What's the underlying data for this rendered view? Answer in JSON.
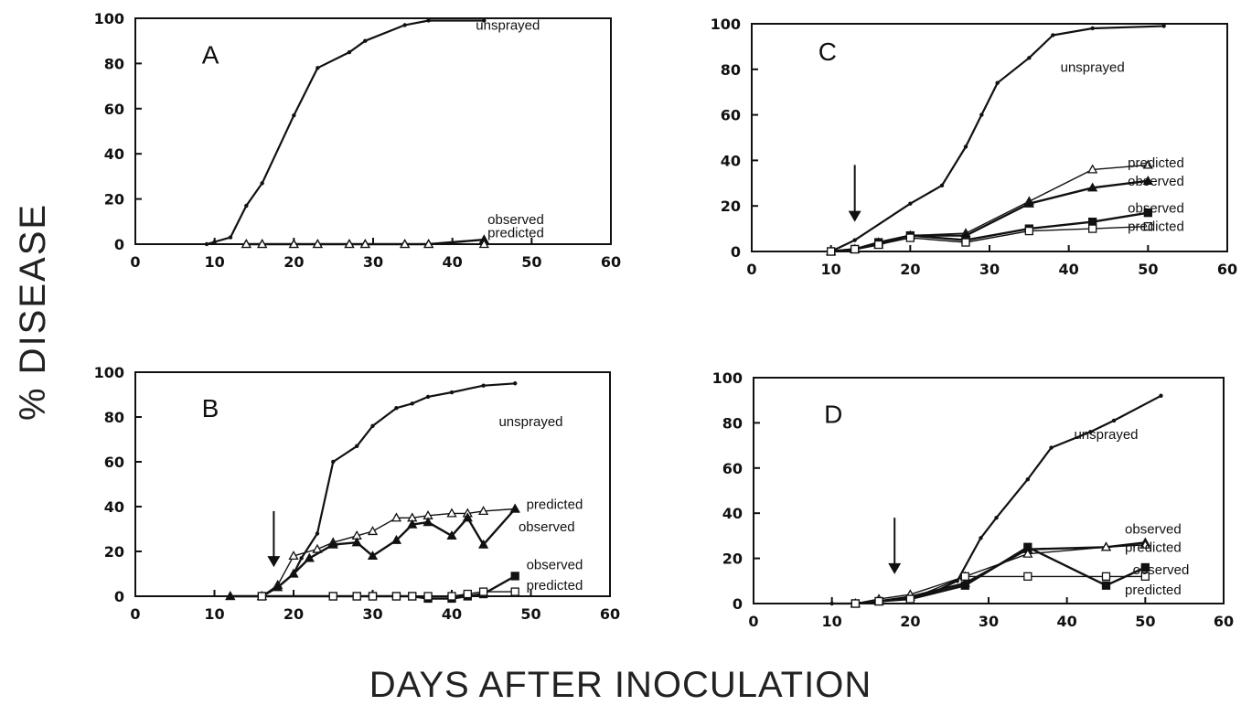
{
  "figure": {
    "ylabel": "% DISEASE",
    "xlabel": "DAYS AFTER INOCULATION"
  },
  "chart_data": [
    {
      "panel": "A",
      "type": "line",
      "xlim": [
        0,
        60
      ],
      "ylim": [
        0,
        100
      ],
      "xticks": [
        0,
        10,
        20,
        30,
        40,
        50,
        60
      ],
      "yticks": [
        0,
        20,
        40,
        60,
        80,
        100
      ],
      "spray_arrow_x": null,
      "series": [
        {
          "name": "unsprayed",
          "marker": "dot",
          "x": [
            9,
            10,
            12,
            14,
            16,
            20,
            23,
            27,
            29,
            34,
            37,
            44
          ],
          "y": [
            0,
            1,
            3,
            17,
            27,
            57,
            78,
            85,
            90,
            97,
            99,
            99
          ]
        },
        {
          "name": "observed",
          "marker": "triangle-filled",
          "x": [
            14,
            16,
            20,
            23,
            27,
            29,
            34,
            37,
            44
          ],
          "y": [
            0,
            0,
            0,
            0,
            0,
            0,
            0,
            0,
            2
          ]
        },
        {
          "name": "predicted",
          "marker": "triangle-open",
          "x": [
            14,
            16,
            20,
            23,
            27,
            29,
            34,
            37,
            44
          ],
          "y": [
            0,
            0,
            0,
            0,
            0,
            0,
            0,
            0,
            0
          ]
        }
      ],
      "annotations": [
        {
          "text": "unsprayed",
          "x": 47,
          "y": 97
        },
        {
          "text": "observed",
          "x": 48,
          "y": 11
        },
        {
          "text": "predicted",
          "x": 48,
          "y": 5
        }
      ]
    },
    {
      "panel": "B",
      "type": "line",
      "xlim": [
        0,
        60
      ],
      "ylim": [
        0,
        100
      ],
      "xticks": [
        0,
        10,
        20,
        30,
        40,
        50,
        60
      ],
      "yticks": [
        0,
        20,
        40,
        60,
        80,
        100
      ],
      "spray_arrow_x": 17.5,
      "series": [
        {
          "name": "unsprayed",
          "marker": "dot",
          "x": [
            12,
            16,
            18,
            20,
            21,
            23,
            25,
            28,
            30,
            33,
            35,
            37,
            40,
            44,
            48
          ],
          "y": [
            0,
            0,
            4,
            10,
            17,
            28,
            60,
            67,
            76,
            84,
            86,
            89,
            91,
            94,
            95
          ]
        },
        {
          "name": "predicted",
          "marker": "triangle-open",
          "x": [
            12,
            16,
            18,
            20,
            23,
            25,
            28,
            30,
            33,
            35,
            37,
            40,
            42,
            44,
            48
          ],
          "y": [
            0,
            0,
            5,
            18,
            21,
            24,
            27,
            29,
            35,
            35,
            36,
            37,
            37,
            38,
            39
          ]
        },
        {
          "name": "observed",
          "marker": "triangle-filled",
          "x": [
            12,
            16,
            18,
            20,
            22,
            25,
            28,
            30,
            33,
            35,
            37,
            40,
            42,
            44,
            48
          ],
          "y": [
            0,
            0,
            4,
            10,
            17,
            23,
            24,
            18,
            25,
            32,
            33,
            27,
            35,
            23,
            39
          ]
        },
        {
          "name": "observed",
          "marker": "square-filled",
          "x": [
            16,
            25,
            28,
            30,
            33,
            35,
            37,
            40,
            42,
            44,
            48
          ],
          "y": [
            0,
            0,
            0,
            0,
            0,
            0,
            -1,
            -1,
            0,
            1,
            9
          ]
        },
        {
          "name": "predicted",
          "marker": "square-open",
          "x": [
            16,
            25,
            28,
            30,
            33,
            35,
            37,
            40,
            42,
            44,
            48
          ],
          "y": [
            0,
            0,
            0,
            0,
            0,
            0,
            0,
            0,
            1,
            2,
            2
          ]
        }
      ],
      "annotations": [
        {
          "text": "unsprayed",
          "x": 50,
          "y": 78
        },
        {
          "text": "predicted",
          "x": 53,
          "y": 41
        },
        {
          "text": "observed",
          "x": 52,
          "y": 31
        },
        {
          "text": "observed",
          "x": 53,
          "y": 14
        },
        {
          "text": "predicted",
          "x": 53,
          "y": 5
        }
      ]
    },
    {
      "panel": "C",
      "type": "line",
      "xlim": [
        0,
        60
      ],
      "ylim": [
        0,
        100
      ],
      "xticks": [
        0,
        10,
        20,
        30,
        40,
        50,
        60
      ],
      "yticks": [
        0,
        20,
        40,
        60,
        80,
        100
      ],
      "spray_arrow_x": 13,
      "series": [
        {
          "name": "unsprayed",
          "marker": "dot",
          "x": [
            10,
            13,
            20,
            24,
            27,
            29,
            31,
            35,
            38,
            43,
            52
          ],
          "y": [
            0,
            5,
            21,
            29,
            46,
            60,
            74,
            85,
            95,
            98,
            99
          ]
        },
        {
          "name": "predicted",
          "marker": "triangle-open",
          "x": [
            10,
            13,
            16,
            20,
            27,
            35,
            43,
            50
          ],
          "y": [
            0,
            1,
            4,
            7,
            8,
            22,
            36,
            38
          ]
        },
        {
          "name": "observed",
          "marker": "triangle-filled",
          "x": [
            10,
            13,
            16,
            20,
            27,
            35,
            43,
            50
          ],
          "y": [
            0,
            1,
            3,
            7,
            7,
            21,
            28,
            31
          ]
        },
        {
          "name": "observed",
          "marker": "square-filled",
          "x": [
            10,
            13,
            16,
            20,
            27,
            35,
            43,
            50
          ],
          "y": [
            0,
            1,
            4,
            7,
            5,
            10,
            13,
            17
          ]
        },
        {
          "name": "predicted",
          "marker": "square-open",
          "x": [
            10,
            13,
            16,
            20,
            27,
            35,
            43,
            50
          ],
          "y": [
            0,
            1,
            3,
            6,
            4,
            9,
            10,
            11
          ]
        }
      ],
      "annotations": [
        {
          "text": "unsprayed",
          "x": 43,
          "y": 81
        },
        {
          "text": "predicted",
          "x": 51,
          "y": 39
        },
        {
          "text": "observed",
          "x": 51,
          "y": 31
        },
        {
          "text": "observed",
          "x": 51,
          "y": 19
        },
        {
          "text": "predicted",
          "x": 51,
          "y": 11
        }
      ]
    },
    {
      "panel": "D",
      "type": "line",
      "xlim": [
        0,
        60
      ],
      "ylim": [
        0,
        100
      ],
      "xticks": [
        0,
        10,
        20,
        30,
        40,
        50,
        60
      ],
      "yticks": [
        0,
        20,
        40,
        60,
        80,
        100
      ],
      "spray_arrow_x": 18,
      "series": [
        {
          "name": "unsprayed",
          "marker": "dot",
          "x": [
            10,
            13,
            16,
            20,
            23,
            26,
            29,
            31,
            35,
            38,
            43,
            46,
            52
          ],
          "y": [
            0,
            0,
            1,
            3,
            5,
            10,
            29,
            38,
            55,
            69,
            76,
            81,
            92
          ]
        },
        {
          "name": "observed",
          "marker": "triangle-filled",
          "x": [
            13,
            16,
            20,
            27,
            35,
            45,
            50
          ],
          "y": [
            0,
            1,
            3,
            9,
            24,
            25,
            27
          ]
        },
        {
          "name": "predicted",
          "marker": "triangle-open",
          "x": [
            13,
            16,
            20,
            27,
            35,
            45,
            50
          ],
          "y": [
            0,
            2,
            4,
            12,
            22,
            25,
            26
          ]
        },
        {
          "name": "observed",
          "marker": "square-filled",
          "x": [
            13,
            16,
            20,
            27,
            35,
            45,
            50
          ],
          "y": [
            0,
            1,
            2,
            8,
            25,
            8,
            16
          ]
        },
        {
          "name": "predicted",
          "marker": "square-open",
          "x": [
            13,
            16,
            20,
            27,
            35,
            45,
            50
          ],
          "y": [
            0,
            1,
            2,
            12,
            12,
            12,
            12
          ]
        }
      ],
      "annotations": [
        {
          "text": "unsprayed",
          "x": 45,
          "y": 75
        },
        {
          "text": "observed",
          "x": 51,
          "y": 33
        },
        {
          "text": "predicted",
          "x": 51,
          "y": 25
        },
        {
          "text": "observed",
          "x": 52,
          "y": 15
        },
        {
          "text": "predicted",
          "x": 51,
          "y": 6
        }
      ]
    }
  ]
}
